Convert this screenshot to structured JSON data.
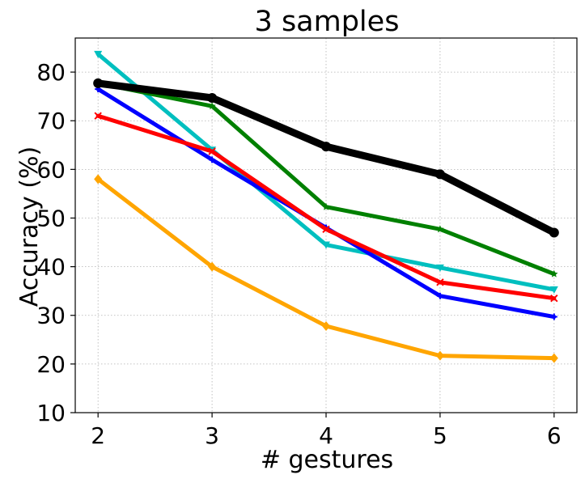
{
  "chart_data": {
    "type": "line",
    "title": "3 samples",
    "xlabel": "# gestures",
    "ylabel": "Accuracy (%)",
    "x": [
      2,
      3,
      4,
      5,
      6
    ],
    "xlim": [
      1.8,
      6.2
    ],
    "ylim": [
      10,
      87
    ],
    "xticks": [
      "2",
      "3",
      "4",
      "5",
      "6"
    ],
    "yticks": [
      "10",
      "20",
      "30",
      "40",
      "50",
      "60",
      "70",
      "80"
    ],
    "grid": true,
    "series": [
      {
        "color": "#00bfbf",
        "marker": "triangle-down",
        "width": 5,
        "values": [
          83.7,
          64.0,
          44.5,
          39.8,
          35.3
        ]
      },
      {
        "color": "#008000",
        "marker": "star",
        "width": 5,
        "values": [
          77.7,
          73.0,
          52.3,
          47.7,
          38.5
        ]
      },
      {
        "color": "#0000ff",
        "marker": "plus",
        "width": 5,
        "values": [
          76.5,
          62.0,
          48.0,
          34.0,
          29.7
        ]
      },
      {
        "color": "#ff0000",
        "marker": "x",
        "width": 5,
        "values": [
          71.0,
          63.7,
          47.7,
          36.8,
          33.5
        ]
      },
      {
        "color": "#ffa500",
        "marker": "diamond",
        "width": 5,
        "values": [
          58.0,
          40.0,
          27.8,
          21.7,
          21.2
        ]
      },
      {
        "color": "#000000",
        "marker": "circle",
        "width": 9,
        "values": [
          77.7,
          74.7,
          64.7,
          59.0,
          47.0
        ]
      }
    ]
  }
}
